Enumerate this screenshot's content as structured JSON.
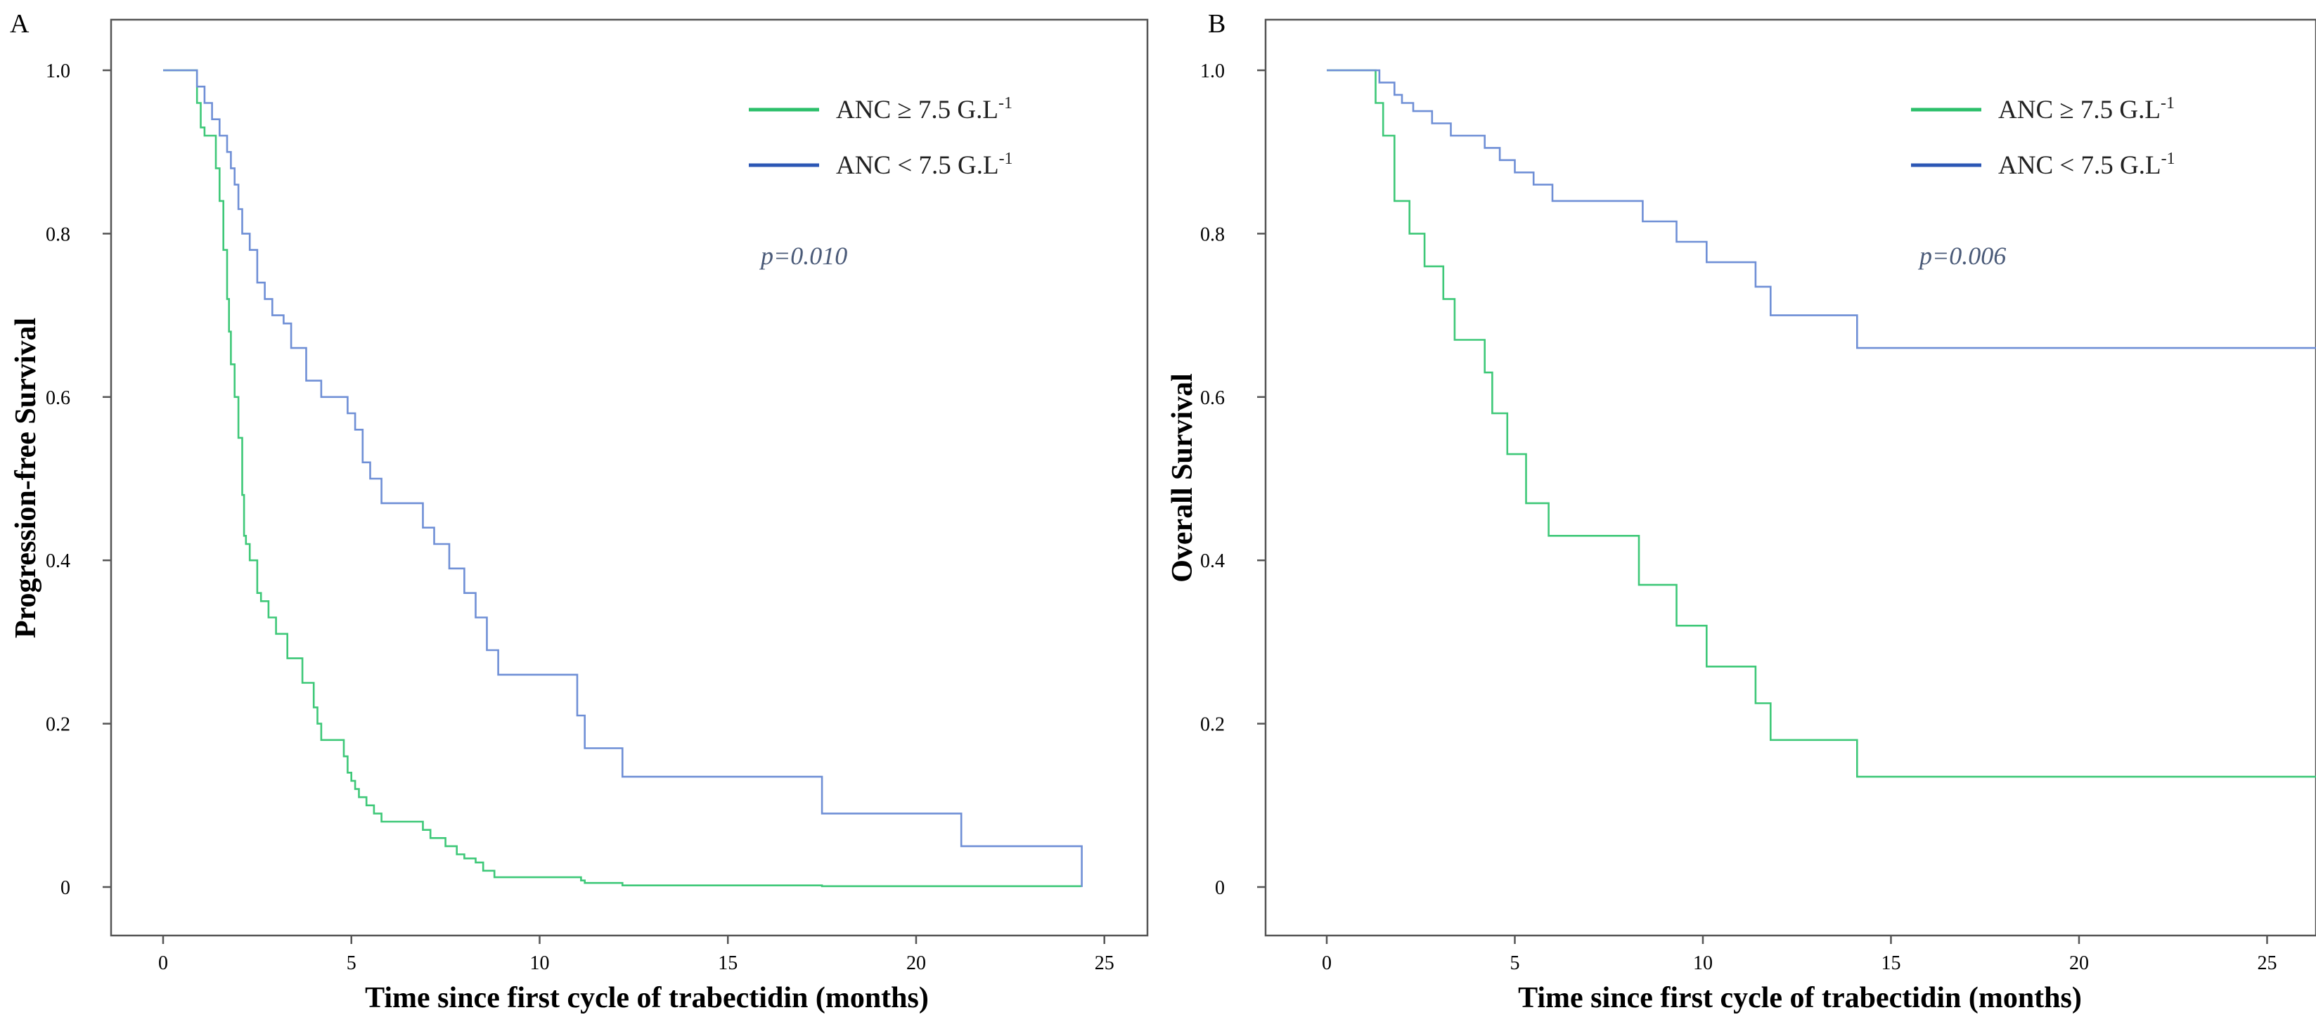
{
  "colors": {
    "anc_high": "#3ec878",
    "anc_low": "#6f8fd6",
    "legend_high": "#2bbf6a",
    "legend_low": "#2c57b5",
    "frame": "#555555"
  },
  "chart_data": [
    {
      "type": "line",
      "step": true,
      "panel_label": "A",
      "title": "",
      "xlabel": "Time since first cycle of trabectidin (months)",
      "ylabel": "Progression-free Survival",
      "xlim": [
        0,
        24.8
      ],
      "ylim": [
        0,
        1.0
      ],
      "xticks": [
        "0",
        "5",
        "10",
        "15",
        "20",
        "25"
      ],
      "yticks": [
        "0",
        "0.2",
        "0.4",
        "0.6",
        "0.8",
        "1.0"
      ],
      "grid": false,
      "legend_position": "top-right",
      "annotation": "p=0.010",
      "series": [
        {
          "name": "ANC ≥ 7.5 G.L",
          "name_sup": "-1",
          "color_key": "anc_high",
          "legend_color_key": "legend_high",
          "x": [
            0,
            0.9,
            1.0,
            1.1,
            1.4,
            1.5,
            1.6,
            1.7,
            1.75,
            1.8,
            1.9,
            2.0,
            2.1,
            2.15,
            2.2,
            2.3,
            2.5,
            2.6,
            2.8,
            3.0,
            3.3,
            3.7,
            4.0,
            4.1,
            4.2,
            4.8,
            4.9,
            5.0,
            5.1,
            5.2,
            5.4,
            5.6,
            5.8,
            6.9,
            7.1,
            7.5,
            7.8,
            8.0,
            8.3,
            8.5,
            8.8,
            11.0,
            11.1,
            11.2,
            12.2,
            17.5,
            24.4
          ],
          "y": [
            1.0,
            0.96,
            0.93,
            0.92,
            0.88,
            0.84,
            0.78,
            0.72,
            0.68,
            0.64,
            0.6,
            0.55,
            0.48,
            0.43,
            0.42,
            0.4,
            0.36,
            0.35,
            0.33,
            0.31,
            0.28,
            0.25,
            0.22,
            0.2,
            0.18,
            0.16,
            0.14,
            0.13,
            0.12,
            0.11,
            0.1,
            0.09,
            0.08,
            0.07,
            0.06,
            0.05,
            0.04,
            0.035,
            0.03,
            0.02,
            0.012,
            0.012,
            0.008,
            0.005,
            0.002,
            0.001,
            0.001
          ]
        },
        {
          "name": "ANC < 7.5 G.L",
          "name_sup": "-1",
          "color_key": "anc_low",
          "legend_color_key": "legend_low",
          "x": [
            0,
            0.9,
            1.1,
            1.3,
            1.5,
            1.7,
            1.8,
            1.9,
            2.0,
            2.1,
            2.3,
            2.5,
            2.7,
            2.9,
            3.2,
            3.4,
            3.8,
            4.2,
            4.9,
            5.1,
            5.3,
            5.5,
            5.8,
            6.9,
            7.2,
            7.6,
            8.0,
            8.3,
            8.6,
            8.9,
            11.0,
            11.2,
            12.2,
            17.5,
            21.2,
            24.4
          ],
          "y": [
            1.0,
            0.98,
            0.96,
            0.94,
            0.92,
            0.9,
            0.88,
            0.86,
            0.83,
            0.8,
            0.78,
            0.74,
            0.72,
            0.7,
            0.69,
            0.66,
            0.62,
            0.6,
            0.58,
            0.56,
            0.52,
            0.5,
            0.47,
            0.44,
            0.42,
            0.39,
            0.36,
            0.33,
            0.29,
            0.26,
            0.21,
            0.17,
            0.135,
            0.09,
            0.05,
            0.0
          ]
        }
      ]
    },
    {
      "type": "line",
      "step": true,
      "panel_label": "B",
      "title": "",
      "xlabel": "Time since first cycle of trabectidin (months)",
      "ylabel": "Overall Survival",
      "xlim": [
        0,
        26.3
      ],
      "ylim": [
        0,
        1.0
      ],
      "xticks": [
        "0",
        "5",
        "10",
        "15",
        "20",
        "25"
      ],
      "yticks": [
        "0",
        "0.2",
        "0.4",
        "0.6",
        "0.8",
        "1.0"
      ],
      "grid": false,
      "legend_position": "top-right",
      "annotation": "p=0.006",
      "series": [
        {
          "name": "ANC ≥ 7.5 G.L",
          "name_sup": "-1",
          "color_key": "anc_high",
          "legend_color_key": "legend_high",
          "x": [
            0,
            1.3,
            1.5,
            1.8,
            2.2,
            2.6,
            3.1,
            3.4,
            4.2,
            4.4,
            4.8,
            5.3,
            5.9,
            8.3,
            9.3,
            10.1,
            11.4,
            11.8,
            14.1,
            26.3
          ],
          "y": [
            1.0,
            0.96,
            0.92,
            0.84,
            0.8,
            0.76,
            0.72,
            0.67,
            0.63,
            0.58,
            0.53,
            0.47,
            0.43,
            0.37,
            0.32,
            0.27,
            0.225,
            0.18,
            0.135,
            0.135
          ]
        },
        {
          "name": "ANC < 7.5 G.L",
          "name_sup": "-1",
          "color_key": "anc_low",
          "legend_color_key": "legend_low",
          "x": [
            0,
            1.4,
            1.8,
            2.0,
            2.3,
            2.8,
            3.3,
            4.2,
            4.6,
            5.0,
            5.5,
            6.0,
            8.4,
            9.3,
            10.1,
            11.4,
            11.8,
            14.1,
            26.3
          ],
          "y": [
            1.0,
            0.985,
            0.97,
            0.96,
            0.95,
            0.935,
            0.92,
            0.905,
            0.89,
            0.875,
            0.86,
            0.84,
            0.815,
            0.79,
            0.765,
            0.735,
            0.7,
            0.66,
            0.66
          ]
        }
      ]
    }
  ]
}
